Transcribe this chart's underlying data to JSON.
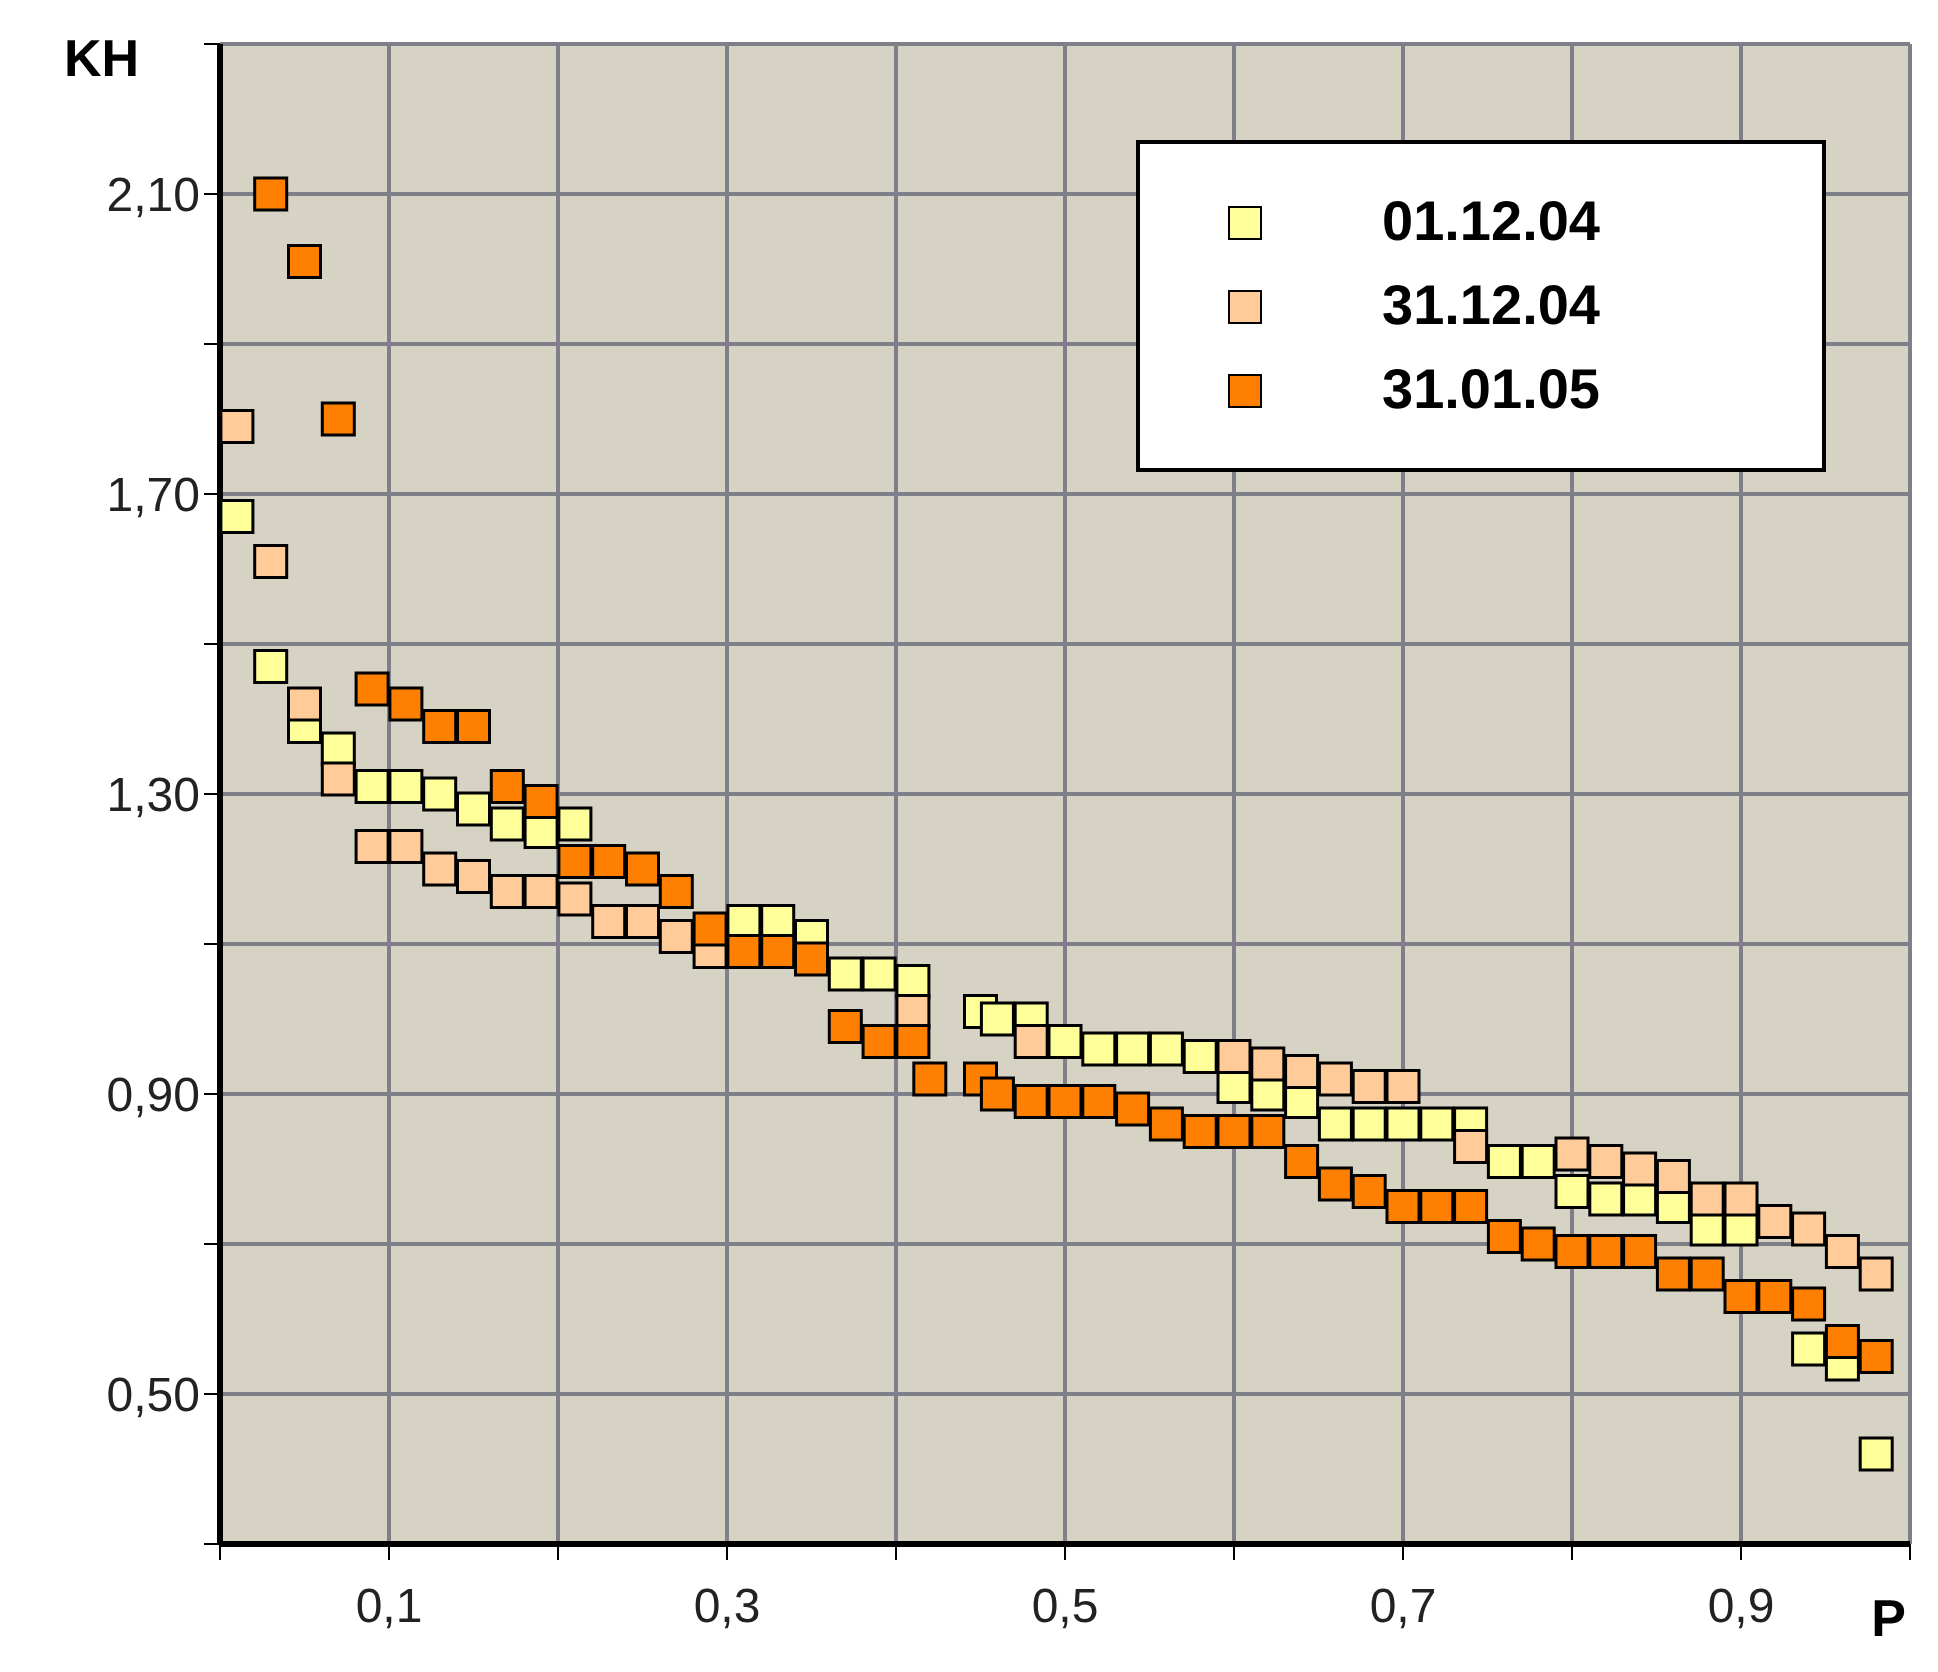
{
  "chart_data": {
    "type": "scatter",
    "xlabel": "P",
    "ylabel": "KH",
    "marker": "square",
    "grid": true,
    "legend": "top right",
    "xlim": [
      0,
      1
    ],
    "ylim": [
      0.3,
      2.3
    ],
    "xticks": [
      {
        "value": 0,
        "label": null
      },
      {
        "value": 0.1,
        "label": "0,1"
      },
      {
        "value": 0.2,
        "label": null
      },
      {
        "value": 0.3,
        "label": "0,3"
      },
      {
        "value": 0.4,
        "label": null
      },
      {
        "value": 0.5,
        "label": "0,5"
      },
      {
        "value": 0.6,
        "label": null
      },
      {
        "value": 0.7,
        "label": "0,7"
      },
      {
        "value": 0.8,
        "label": null
      },
      {
        "value": 0.9,
        "label": "0,9"
      },
      {
        "value": 1,
        "label": null
      }
    ],
    "yticks": [
      {
        "value": 0.3,
        "label": null
      },
      {
        "value": 0.5,
        "label": "0,50"
      },
      {
        "value": 0.7,
        "label": null
      },
      {
        "value": 0.9,
        "label": "0,90"
      },
      {
        "value": 1.1,
        "label": null
      },
      {
        "value": 1.3,
        "label": "1,30"
      },
      {
        "value": 1.5,
        "label": null
      },
      {
        "value": 1.7,
        "label": "1,70"
      },
      {
        "value": 1.9,
        "label": null
      },
      {
        "value": 2.1,
        "label": "2,10"
      },
      {
        "value": 2.3,
        "label": null
      }
    ],
    "series": [
      {
        "name": "01.12.04",
        "color": "#ffff99",
        "x": [
          0.01,
          0.03,
          0.05,
          0.07,
          0.09,
          0.11,
          0.13,
          0.15,
          0.17,
          0.19,
          0.21,
          0.31,
          0.33,
          0.35,
          0.37,
          0.39,
          0.41,
          0.42,
          0.45,
          0.46,
          0.48,
          0.5,
          0.52,
          0.54,
          0.56,
          0.58,
          0.6,
          0.62,
          0.64,
          0.66,
          0.68,
          0.7,
          0.72,
          0.74,
          0.76,
          0.78,
          0.8,
          0.82,
          0.84,
          0.86,
          0.88,
          0.9,
          0.94,
          0.96,
          0.98
        ],
        "values": [
          1.67,
          1.47,
          1.39,
          1.36,
          1.31,
          1.31,
          1.3,
          1.28,
          1.26,
          1.25,
          1.26,
          1.13,
          1.13,
          1.11,
          1.06,
          1.06,
          1.05,
          null,
          1.01,
          1.0,
          1.0,
          0.97,
          0.96,
          0.96,
          0.96,
          0.95,
          0.91,
          0.9,
          0.89,
          0.86,
          0.86,
          0.86,
          0.86,
          0.86,
          0.81,
          0.81,
          0.77,
          0.76,
          0.76,
          0.75,
          0.72,
          0.72,
          0.56,
          0.54,
          0.42
        ]
      },
      {
        "name": "31.12.04",
        "color": "#ffcc99",
        "x": [
          0.01,
          0.03,
          0.05,
          0.07,
          0.09,
          0.11,
          0.13,
          0.15,
          0.17,
          0.19,
          0.21,
          0.23,
          0.25,
          0.27,
          0.29,
          0.31,
          0.33,
          0.41,
          0.48,
          0.6,
          0.62,
          0.64,
          0.66,
          0.68,
          0.7,
          0.74,
          0.8,
          0.82,
          0.84,
          0.86,
          0.88,
          0.9,
          0.92,
          0.94,
          0.96,
          0.98
        ],
        "values": [
          1.79,
          1.61,
          1.42,
          1.32,
          1.23,
          1.23,
          1.2,
          1.19,
          1.17,
          1.17,
          1.16,
          1.13,
          1.13,
          1.11,
          1.09,
          null,
          null,
          1.01,
          0.97,
          0.95,
          0.94,
          0.93,
          0.92,
          0.91,
          0.91,
          0.83,
          0.82,
          0.81,
          0.8,
          0.79,
          0.76,
          0.76,
          0.73,
          0.72,
          0.69,
          0.66
        ]
      },
      {
        "name": "31.01.05",
        "color": "#ff8000",
        "x": [
          0.03,
          0.05,
          0.07,
          0.09,
          0.11,
          0.13,
          0.15,
          0.17,
          0.19,
          0.21,
          0.23,
          0.25,
          0.27,
          0.29,
          0.31,
          0.33,
          0.35,
          0.37,
          0.39,
          0.41,
          0.42,
          0.45,
          0.46,
          0.48,
          0.5,
          0.52,
          0.54,
          0.56,
          0.58,
          0.6,
          0.62,
          0.64,
          0.66,
          0.68,
          0.7,
          0.72,
          0.74,
          0.76,
          0.78,
          0.8,
          0.82,
          0.84,
          0.86,
          0.88,
          0.9,
          0.92,
          0.94,
          0.96,
          0.98
        ],
        "values": [
          2.1,
          2.01,
          1.8,
          1.44,
          1.42,
          1.39,
          1.39,
          1.31,
          1.29,
          1.21,
          1.21,
          1.2,
          1.17,
          1.12,
          1.09,
          1.09,
          1.08,
          0.99,
          0.97,
          0.97,
          0.92,
          0.92,
          0.9,
          0.89,
          0.89,
          0.89,
          0.88,
          0.86,
          0.85,
          0.85,
          0.85,
          0.81,
          0.78,
          0.77,
          0.75,
          0.75,
          0.75,
          0.71,
          0.7,
          0.69,
          0.69,
          0.69,
          0.66,
          0.66,
          0.63,
          0.63,
          0.62,
          0.57,
          0.55
        ]
      }
    ]
  }
}
